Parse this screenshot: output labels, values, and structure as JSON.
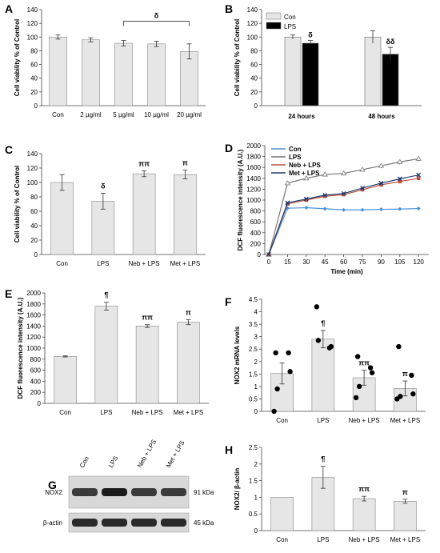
{
  "chart_data": [
    {
      "panel": "A",
      "type": "bar",
      "ylabel": "Cell viability % of Control",
      "ylim": [
        0,
        140
      ],
      "yticks": [
        0,
        20,
        40,
        60,
        80,
        100,
        120,
        140
      ],
      "categories": [
        "Con",
        "2 µg/ml",
        "5 µg/ml",
        "10 µg/ml",
        "20 µg/ml"
      ],
      "values": [
        100,
        96,
        91,
        90,
        79
      ],
      "errors": [
        3,
        3,
        4,
        4,
        11
      ],
      "annotations": [
        {
          "text": "δ",
          "from": 2,
          "to": 4
        }
      ],
      "bar_color": "#e6e6e6"
    },
    {
      "panel": "B",
      "type": "bar",
      "ylabel": "Cell viability % of Control",
      "ylim": [
        0,
        140
      ],
      "yticks": [
        0,
        20,
        40,
        60,
        80,
        100,
        120,
        140
      ],
      "categories": [
        "24 hours",
        "48 hours"
      ],
      "series": [
        {
          "name": "Con",
          "color": "#e6e6e6",
          "values": [
            100,
            100
          ],
          "errors": [
            3,
            9
          ],
          "labels": [
            "",
            ""
          ]
        },
        {
          "name": "LPS",
          "color": "#000000",
          "values": [
            91,
            75
          ],
          "errors": [
            4,
            10
          ],
          "labels": [
            "δ",
            "δδ"
          ]
        }
      ],
      "legend": "top-left"
    },
    {
      "panel": "C",
      "type": "bar",
      "ylabel": "Cell viability % of Control",
      "ylim": [
        0,
        140
      ],
      "yticks": [
        0,
        20,
        40,
        60,
        80,
        100,
        120,
        140
      ],
      "categories": [
        "Con",
        "LPS",
        "Neb + LPS",
        "Met + LPS"
      ],
      "values": [
        100,
        74,
        112,
        111
      ],
      "errors": [
        11,
        11,
        4,
        6
      ],
      "labels": [
        "",
        "δ",
        "ππ",
        "π"
      ],
      "bar_color": "#e6e6e6"
    },
    {
      "panel": "D",
      "type": "line",
      "ylabel": "DCF fluorescence intensity (A.U.)",
      "xlabel": "Time (min)",
      "ylim": [
        0,
        2000
      ],
      "yticks": [
        0,
        200,
        400,
        600,
        800,
        1000,
        1200,
        1400,
        1600,
        1800,
        2000
      ],
      "x": [
        0,
        15,
        30,
        45,
        60,
        75,
        90,
        105,
        120
      ],
      "series": [
        {
          "name": "Con",
          "color": "#4a90d9",
          "marker": "diamond",
          "values": [
            0,
            850,
            860,
            840,
            820,
            820,
            830,
            835,
            845
          ],
          "errors": [
            0,
            10,
            10,
            10,
            10,
            10,
            10,
            10,
            10
          ]
        },
        {
          "name": "LPS",
          "color": "#777777",
          "marker": "triangle",
          "values": [
            0,
            1310,
            1400,
            1470,
            1490,
            1560,
            1630,
            1700,
            1760
          ],
          "errors": [
            0,
            20,
            30,
            35,
            40,
            40,
            45,
            50,
            55
          ]
        },
        {
          "name": "Neb + LPS",
          "color": "#c0503c",
          "marker": "square",
          "values": [
            0,
            930,
            1000,
            1070,
            1100,
            1190,
            1280,
            1340,
            1400
          ],
          "errors": [
            0,
            20,
            20,
            25,
            25,
            30,
            30,
            30,
            30
          ]
        },
        {
          "name": "Met + LPS",
          "color": "#1f3b6e",
          "marker": "x",
          "values": [
            0,
            950,
            1020,
            1090,
            1120,
            1220,
            1310,
            1390,
            1460
          ],
          "errors": [
            0,
            20,
            20,
            25,
            25,
            30,
            30,
            30,
            35
          ]
        }
      ],
      "legend": "top-left"
    },
    {
      "panel": "E",
      "type": "bar",
      "ylabel": "DCF fluorescence intensity (A.U.)",
      "ylim": [
        0,
        2000
      ],
      "yticks": [
        0,
        200,
        400,
        600,
        800,
        1000,
        1200,
        1400,
        1600,
        1800,
        2000
      ],
      "categories": [
        "Con",
        "LPS",
        "Neb + LPS",
        "Met + LPS"
      ],
      "values": [
        850,
        1760,
        1400,
        1470
      ],
      "errors": [
        10,
        70,
        25,
        45
      ],
      "labels": [
        "",
        "¶",
        "ππ",
        "π"
      ],
      "bar_color": "#e6e6e6"
    },
    {
      "panel": "F",
      "type": "bar",
      "ylabel": "NOX2 mRNA levels",
      "ylim": [
        0,
        4.5
      ],
      "yticks": [
        "0",
        "0.5",
        "1",
        "1.5",
        "2",
        "2.5",
        "3",
        "3.5",
        "4",
        "4.5"
      ],
      "categories": [
        "Con",
        "LPS",
        "Neb + LPS",
        "Met + LPS"
      ],
      "values": [
        1.52,
        2.9,
        1.35,
        0.92
      ],
      "errors": [
        0.42,
        0.35,
        0.3,
        0.3
      ],
      "labels": [
        "",
        "¶",
        "ππ",
        "π"
      ],
      "points": [
        [
          2.35,
          2.35,
          1.6,
          0.9,
          0.0
        ],
        [
          4.2,
          2.55,
          2.6,
          2.85
        ],
        [
          2.2,
          1.75,
          1.55,
          1.0,
          0.55
        ],
        [
          2.6,
          1.45,
          0.7,
          0.6,
          0.5
        ]
      ],
      "bar_color": "#e6e6e6"
    },
    {
      "panel": "H",
      "type": "bar",
      "ylabel": "NOX2/ β-actin",
      "ylim": [
        0,
        2.5
      ],
      "yticks": [
        "0",
        "0.5",
        "1",
        "1.5",
        "2",
        "2.5"
      ],
      "categories": [
        "Con",
        "LPS",
        "Neb + LPS",
        "Met + LPS"
      ],
      "values": [
        1.0,
        1.6,
        0.96,
        0.88
      ],
      "errors": [
        0,
        0.33,
        0.07,
        0.06
      ],
      "labels": [
        "",
        "¶",
        "ππ",
        "π"
      ],
      "bar_color": "#e6e6e6"
    }
  ],
  "panel_labels": {
    "a": "A",
    "b": "B",
    "c": "C",
    "d": "D",
    "e": "E",
    "f": "F",
    "g": "G",
    "h": "H"
  },
  "blot": {
    "lanes": [
      "Con",
      "LPS",
      "Neb + LPS",
      "Met + LPS"
    ],
    "bands": [
      {
        "label": "NOX2",
        "size": "91 kDa"
      },
      {
        "label": "β-actin",
        "size": "45 kDa"
      }
    ]
  }
}
